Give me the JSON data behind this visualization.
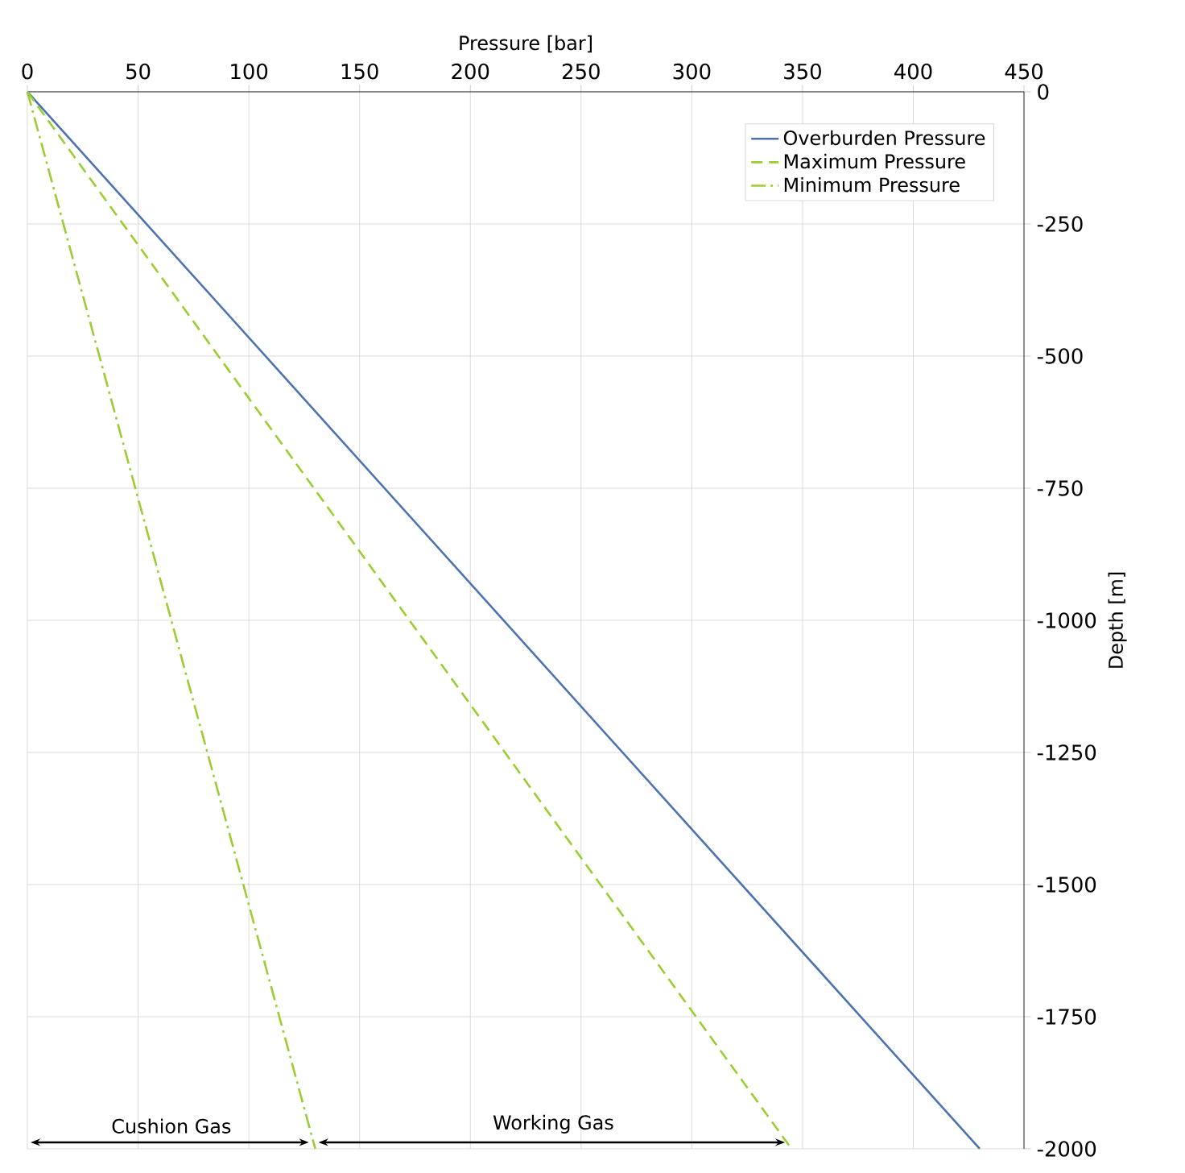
{
  "chart_data": {
    "type": "line",
    "xlabel": "Pressure [bar]",
    "ylabel": "Depth [m]",
    "xlim": [
      0,
      450
    ],
    "xticks": [
      0,
      50,
      100,
      150,
      200,
      250,
      300,
      350,
      400,
      450
    ],
    "ylim": [
      -2000,
      0
    ],
    "yticks": [
      -2000,
      -1750,
      -1500,
      -1250,
      -1000,
      -750,
      -500,
      -250,
      0
    ],
    "grid": true,
    "legend": "top right",
    "series": [
      {
        "name": "Overburden Pressure",
        "color": "#4c72b0",
        "line_style": "solid",
        "x": [
          0,
          430
        ],
        "values": [
          0,
          -2000
        ]
      },
      {
        "name": "Maximum Pressure",
        "color": "#9acd32",
        "line_style": "dashed",
        "x": [
          0,
          345
        ],
        "values": [
          0,
          -2000
        ]
      },
      {
        "name": "Minimum Pressure",
        "color": "#9acd32",
        "line_style": "dashdot",
        "x": [
          0,
          130
        ],
        "values": [
          0,
          -2000
        ]
      }
    ],
    "annotations": [
      "Cushion Gas",
      "Working Gas"
    ]
  }
}
